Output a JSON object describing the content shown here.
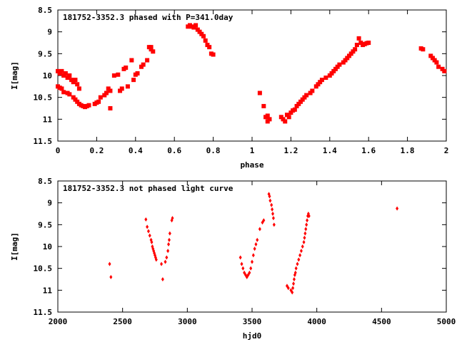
{
  "chart_data": [
    {
      "type": "scatter",
      "title": "181752-3352.3 phased with P=341.0day",
      "xlabel": "phase",
      "ylabel": "I[mag]",
      "xlim": [
        0,
        2
      ],
      "ylim": [
        11.5,
        8.5
      ],
      "y_inverted": true,
      "xticks": [
        "0",
        "0.2",
        "0.4",
        "0.6",
        "0.8",
        "1",
        "1.2",
        "1.4",
        "1.6",
        "1.8",
        "2"
      ],
      "xtick_values": [
        0,
        0.2,
        0.4,
        0.6,
        0.8,
        1.0,
        1.2,
        1.4,
        1.6,
        1.8,
        2.0
      ],
      "yticks": [
        "8.5",
        "9",
        "9.5",
        "10",
        "10.5",
        "11",
        "11.5"
      ],
      "ytick_values": [
        8.5,
        9,
        9.5,
        10,
        10.5,
        11,
        11.5
      ],
      "grid": false,
      "marker_color": "#ff0000",
      "marker": "square",
      "series": [
        {
          "points": [
            [
              0.0,
              9.9
            ],
            [
              0.01,
              9.95
            ],
            [
              0.02,
              9.9
            ],
            [
              0.03,
              10.0
            ],
            [
              0.04,
              9.95
            ],
            [
              0.05,
              10.05
            ],
            [
              0.06,
              10.0
            ],
            [
              0.07,
              10.1
            ],
            [
              0.08,
              10.15
            ],
            [
              0.09,
              10.1
            ],
            [
              0.1,
              10.2
            ],
            [
              0.11,
              10.3
            ],
            [
              0.0,
              10.25
            ],
            [
              0.01,
              10.28
            ],
            [
              0.02,
              10.3
            ],
            [
              0.03,
              10.38
            ],
            [
              0.05,
              10.4
            ],
            [
              0.06,
              10.43
            ],
            [
              0.08,
              10.5
            ],
            [
              0.09,
              10.55
            ],
            [
              0.1,
              10.6
            ],
            [
              0.11,
              10.65
            ],
            [
              0.12,
              10.68
            ],
            [
              0.13,
              10.7
            ],
            [
              0.14,
              10.72
            ],
            [
              0.15,
              10.7
            ],
            [
              0.16,
              10.68
            ],
            [
              0.19,
              10.65
            ],
            [
              0.2,
              10.62
            ],
            [
              0.21,
              10.6
            ],
            [
              0.22,
              10.5
            ],
            [
              0.24,
              10.45
            ],
            [
              0.25,
              10.4
            ],
            [
              0.26,
              10.3
            ],
            [
              0.27,
              10.35
            ],
            [
              0.27,
              10.75
            ],
            [
              0.29,
              10.0
            ],
            [
              0.31,
              9.98
            ],
            [
              0.32,
              10.35
            ],
            [
              0.33,
              10.3
            ],
            [
              0.34,
              9.85
            ],
            [
              0.35,
              9.82
            ],
            [
              0.36,
              10.25
            ],
            [
              0.38,
              9.65
            ],
            [
              0.39,
              10.1
            ],
            [
              0.4,
              9.98
            ],
            [
              0.41,
              9.95
            ],
            [
              0.43,
              9.8
            ],
            [
              0.44,
              9.75
            ],
            [
              0.46,
              9.65
            ],
            [
              0.47,
              9.35
            ],
            [
              0.48,
              9.4
            ],
            [
              0.49,
              9.45
            ],
            [
              0.48,
              9.35
            ],
            [
              0.67,
              8.88
            ],
            [
              0.68,
              8.85
            ],
            [
              0.69,
              8.88
            ],
            [
              0.7,
              8.9
            ],
            [
              0.71,
              8.85
            ],
            [
              0.72,
              8.95
            ],
            [
              0.73,
              9.0
            ],
            [
              0.74,
              9.05
            ],
            [
              0.75,
              9.1
            ],
            [
              0.76,
              9.2
            ],
            [
              0.77,
              9.3
            ],
            [
              0.78,
              9.35
            ],
            [
              0.79,
              9.5
            ],
            [
              0.8,
              9.52
            ],
            [
              1.04,
              10.4
            ],
            [
              1.06,
              10.7
            ],
            [
              1.07,
              10.95
            ],
            [
              1.08,
              10.92
            ],
            [
              1.09,
              11.0
            ],
            [
              1.08,
              11.05
            ],
            [
              1.15,
              10.95
            ],
            [
              1.16,
              11.0
            ],
            [
              1.17,
              11.05
            ],
            [
              1.18,
              10.9
            ],
            [
              1.19,
              10.95
            ],
            [
              1.2,
              10.85
            ],
            [
              1.21,
              10.8
            ],
            [
              1.22,
              10.78
            ],
            [
              1.23,
              10.7
            ],
            [
              1.24,
              10.65
            ],
            [
              1.25,
              10.6
            ],
            [
              1.26,
              10.55
            ],
            [
              1.27,
              10.5
            ],
            [
              1.28,
              10.45
            ],
            [
              1.3,
              10.4
            ],
            [
              1.31,
              10.35
            ],
            [
              1.33,
              10.25
            ],
            [
              1.34,
              10.2
            ],
            [
              1.35,
              10.15
            ],
            [
              1.36,
              10.1
            ],
            [
              1.38,
              10.05
            ],
            [
              1.4,
              10.0
            ],
            [
              1.41,
              9.95
            ],
            [
              1.42,
              9.9
            ],
            [
              1.43,
              9.85
            ],
            [
              1.44,
              9.8
            ],
            [
              1.45,
              9.75
            ],
            [
              1.47,
              9.7
            ],
            [
              1.48,
              9.65
            ],
            [
              1.49,
              9.6
            ],
            [
              1.5,
              9.55
            ],
            [
              1.51,
              9.5
            ],
            [
              1.52,
              9.45
            ],
            [
              1.53,
              9.4
            ],
            [
              1.54,
              9.3
            ],
            [
              1.55,
              9.15
            ],
            [
              1.56,
              9.25
            ],
            [
              1.57,
              9.3
            ],
            [
              1.58,
              9.28
            ],
            [
              1.59,
              9.26
            ],
            [
              1.6,
              9.25
            ],
            [
              1.87,
              9.38
            ],
            [
              1.88,
              9.4
            ],
            [
              1.92,
              9.55
            ],
            [
              1.93,
              9.6
            ],
            [
              1.94,
              9.65
            ],
            [
              1.95,
              9.7
            ],
            [
              1.96,
              9.8
            ],
            [
              1.98,
              9.85
            ],
            [
              1.99,
              9.9
            ]
          ]
        }
      ]
    },
    {
      "type": "scatter",
      "title": "181752-3352.3 not phased light curve",
      "xlabel": "hjd0",
      "ylabel": "I[mag]",
      "xlim": [
        2000,
        5000
      ],
      "ylim": [
        11.5,
        8.5
      ],
      "y_inverted": true,
      "xticks": [
        "2000",
        "2500",
        "3000",
        "3500",
        "4000",
        "4500",
        "5000"
      ],
      "xtick_values": [
        2000,
        2500,
        3000,
        3500,
        4000,
        4500,
        5000
      ],
      "yticks": [
        "8.5",
        "9",
        "9.5",
        "10",
        "10.5",
        "11",
        "11.5"
      ],
      "ytick_values": [
        8.5,
        9,
        9.5,
        10,
        10.5,
        11,
        11.5
      ],
      "grid": false,
      "marker_color": "#ff0000",
      "marker": "diamond",
      "series": [
        {
          "points": [
            [
              2400,
              10.4
            ],
            [
              2410,
              10.7
            ],
            [
              2680,
              9.38
            ],
            [
              2690,
              9.55
            ],
            [
              2700,
              9.65
            ],
            [
              2710,
              9.75
            ],
            [
              2720,
              9.85
            ],
            [
              2725,
              9.9
            ],
            [
              2730,
              10.0
            ],
            [
              2735,
              10.05
            ],
            [
              2740,
              10.1
            ],
            [
              2745,
              10.15
            ],
            [
              2750,
              10.2
            ],
            [
              2755,
              10.25
            ],
            [
              2760,
              10.3
            ],
            [
              2800,
              10.4
            ],
            [
              2810,
              10.75
            ],
            [
              2830,
              10.35
            ],
            [
              2840,
              10.25
            ],
            [
              2850,
              10.1
            ],
            [
              2855,
              9.95
            ],
            [
              2860,
              9.85
            ],
            [
              2865,
              9.7
            ],
            [
              2880,
              9.4
            ],
            [
              2885,
              9.35
            ],
            [
              3410,
              10.25
            ],
            [
              3420,
              10.4
            ],
            [
              3430,
              10.5
            ],
            [
              3440,
              10.6
            ],
            [
              3450,
              10.65
            ],
            [
              3460,
              10.7
            ],
            [
              3470,
              10.65
            ],
            [
              3480,
              10.6
            ],
            [
              3490,
              10.5
            ],
            [
              3500,
              10.35
            ],
            [
              3510,
              10.2
            ],
            [
              3520,
              10.05
            ],
            [
              3530,
              9.95
            ],
            [
              3540,
              9.85
            ],
            [
              3560,
              9.6
            ],
            [
              3580,
              9.45
            ],
            [
              3590,
              9.4
            ],
            [
              3630,
              8.8
            ],
            [
              3635,
              8.85
            ],
            [
              3640,
              8.95
            ],
            [
              3650,
              9.05
            ],
            [
              3655,
              9.15
            ],
            [
              3660,
              9.25
            ],
            [
              3665,
              9.35
            ],
            [
              3670,
              9.5
            ],
            [
              3770,
              10.9
            ],
            [
              3780,
              10.95
            ],
            [
              3800,
              11.0
            ],
            [
              3810,
              11.05
            ],
            [
              3815,
              10.95
            ],
            [
              3820,
              10.85
            ],
            [
              3825,
              10.75
            ],
            [
              3830,
              10.65
            ],
            [
              3835,
              10.6
            ],
            [
              3840,
              10.5
            ],
            [
              3850,
              10.4
            ],
            [
              3860,
              10.3
            ],
            [
              3870,
              10.2
            ],
            [
              3880,
              10.1
            ],
            [
              3890,
              10.0
            ],
            [
              3900,
              9.9
            ],
            [
              3905,
              9.8
            ],
            [
              3910,
              9.7
            ],
            [
              3915,
              9.6
            ],
            [
              3920,
              9.5
            ],
            [
              3925,
              9.4
            ],
            [
              3930,
              9.3
            ],
            [
              3935,
              9.25
            ],
            [
              3940,
              9.3
            ],
            [
              4620,
              9.13
            ]
          ]
        }
      ]
    }
  ]
}
